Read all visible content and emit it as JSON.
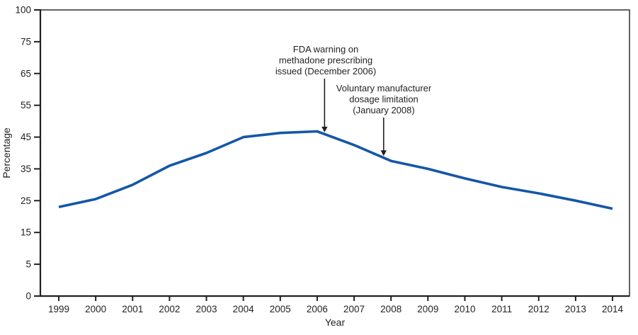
{
  "chart_data": {
    "type": "line",
    "title": "",
    "xlabel": "Year",
    "ylabel": "Percentage",
    "x": [
      1999,
      2000,
      2001,
      2002,
      2003,
      2004,
      2005,
      2006,
      2007,
      2008,
      2009,
      2010,
      2011,
      2012,
      2013,
      2014
    ],
    "x_tick_labels": [
      "1999",
      "2000",
      "2001",
      "2002",
      "2003",
      "2004",
      "2005",
      "2006",
      "2007",
      "2008",
      "2009",
      "2010",
      "2011",
      "2012",
      "2013",
      "2014"
    ],
    "series": [
      {
        "name": "Percentage",
        "values": [
          23,
          25.5,
          30,
          36,
          40,
          45,
          46.3,
          46.8,
          42.5,
          37.5,
          35,
          32,
          29.3,
          27.3,
          25,
          22.5
        ]
      }
    ],
    "y_ticks": [
      0,
      5,
      15,
      25,
      35,
      45,
      55,
      65,
      75,
      100
    ],
    "y_axis_note": "tick labels evenly spaced (compressed non-linear scale)",
    "ylim_labels": [
      0,
      100
    ],
    "grid": false,
    "legend": "none",
    "line_color": "#1457a8",
    "axis_color": "#231f20",
    "annotations": [
      {
        "lines": [
          "FDA warning on",
          "methadone prescribing",
          "issued (December 2006)"
        ],
        "arrow_x": 2006.2
      },
      {
        "lines": [
          "Voluntary manufacturer",
          "dosage limitation",
          "(January 2008)"
        ],
        "arrow_x": 2007.8
      }
    ]
  }
}
